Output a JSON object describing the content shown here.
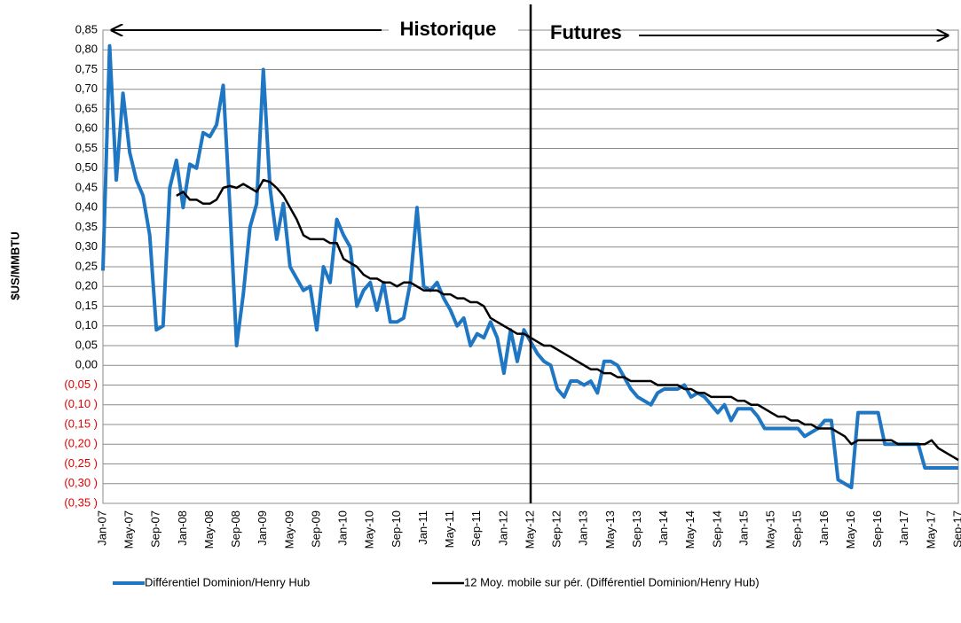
{
  "chart_data": {
    "type": "line",
    "annotations": [
      "Historique",
      "Futures"
    ],
    "ylabel": "$US/MMBTU",
    "categories": [
      "Jan-07",
      null,
      null,
      null,
      "May-07",
      null,
      null,
      null,
      "Sep-07",
      null,
      null,
      null,
      "Jan-08",
      null,
      null,
      null,
      "May-08",
      null,
      null,
      null,
      "Sep-08",
      null,
      null,
      null,
      "Jan-09",
      null,
      null,
      null,
      "May-09",
      null,
      null,
      null,
      "Sep-09",
      null,
      null,
      null,
      "Jan-10",
      null,
      null,
      null,
      "May-10",
      null,
      null,
      null,
      "Sep-10",
      null,
      null,
      null,
      "Jan-11",
      null,
      null,
      null,
      "May-11",
      null,
      null,
      null,
      "Sep-11",
      null,
      null,
      null,
      "Jan-12",
      null,
      null,
      null,
      "May-12",
      null,
      null,
      null,
      "Sep-12",
      null,
      null,
      null,
      "Jan-13",
      null,
      null,
      null,
      "May-13",
      null,
      null,
      null,
      "Sep-13",
      null,
      null,
      null,
      "Jan-14",
      null,
      null,
      null,
      "May-14",
      null,
      null,
      null,
      "Sep-14",
      null,
      null,
      null,
      "Jan-15",
      null,
      null,
      null,
      "May-15",
      null,
      null,
      null,
      "Sep-15",
      null,
      null,
      null,
      "Jan-16",
      null,
      null,
      null,
      "May-16",
      null,
      null,
      null,
      "Sep-16",
      null,
      null,
      null,
      "Jan-17",
      null,
      null,
      null,
      "May-17",
      null,
      null,
      null,
      "Sep-17"
    ],
    "series": [
      {
        "name": "Différentiel Dominion/Henry Hub",
        "color": "#1f77c4",
        "width": 4,
        "values": [
          0.24,
          0.81,
          0.47,
          0.69,
          0.54,
          0.47,
          0.43,
          0.33,
          0.09,
          0.1,
          0.45,
          0.52,
          0.4,
          0.51,
          0.5,
          0.59,
          0.58,
          0.61,
          0.71,
          0.4,
          0.05,
          0.18,
          0.35,
          0.41,
          0.75,
          0.45,
          0.32,
          0.41,
          0.25,
          0.22,
          0.19,
          0.2,
          0.09,
          0.25,
          0.21,
          0.37,
          0.33,
          0.3,
          0.15,
          0.19,
          0.21,
          0.14,
          0.21,
          0.11,
          0.11,
          0.12,
          0.21,
          0.4,
          0.2,
          0.19,
          0.21,
          0.17,
          0.14,
          0.1,
          0.12,
          0.05,
          0.08,
          0.07,
          0.11,
          0.07,
          -0.02,
          0.09,
          0.01,
          0.09,
          0.06,
          0.03,
          0.01,
          0.0,
          -0.06,
          -0.08,
          -0.04,
          -0.04,
          -0.05,
          -0.04,
          -0.07,
          0.01,
          0.01,
          0.0,
          -0.03,
          -0.06,
          -0.08,
          -0.09,
          -0.1,
          -0.07,
          -0.06,
          -0.06,
          -0.06,
          -0.05,
          -0.08,
          -0.07,
          -0.08,
          -0.1,
          -0.12,
          -0.1,
          -0.14,
          -0.11,
          -0.11,
          -0.11,
          -0.13,
          -0.16,
          -0.16,
          -0.16,
          -0.16,
          -0.16,
          -0.16,
          -0.18,
          -0.17,
          -0.16,
          -0.14,
          -0.14,
          -0.29,
          -0.3,
          -0.31,
          -0.12,
          -0.12,
          -0.12,
          -0.12,
          -0.2,
          -0.2,
          -0.2,
          -0.2,
          -0.2,
          -0.2,
          -0.26,
          -0.26,
          -0.26,
          -0.26,
          -0.26,
          -0.26
        ]
      },
      {
        "name": "12 Moy. mobile sur pér. (Différentiel Dominion/Henry Hub)",
        "color": "#000000",
        "width": 2.5,
        "values": [
          null,
          null,
          null,
          null,
          null,
          null,
          null,
          null,
          null,
          null,
          null,
          0.43,
          0.44,
          0.42,
          0.42,
          0.41,
          0.41,
          0.42,
          0.45,
          0.455,
          0.45,
          0.46,
          0.45,
          0.44,
          0.47,
          0.465,
          0.45,
          0.43,
          0.4,
          0.37,
          0.33,
          0.32,
          0.32,
          0.32,
          0.31,
          0.31,
          0.27,
          0.26,
          0.25,
          0.23,
          0.22,
          0.22,
          0.21,
          0.21,
          0.2,
          0.21,
          0.21,
          0.2,
          0.19,
          0.19,
          0.19,
          0.18,
          0.18,
          0.17,
          0.17,
          0.16,
          0.16,
          0.15,
          0.12,
          0.11,
          0.1,
          0.09,
          0.08,
          0.08,
          0.07,
          0.06,
          0.05,
          0.05,
          0.04,
          0.03,
          0.02,
          0.01,
          0.0,
          -0.01,
          -0.01,
          -0.02,
          -0.02,
          -0.03,
          -0.03,
          -0.04,
          -0.04,
          -0.04,
          -0.04,
          -0.05,
          -0.05,
          -0.05,
          -0.05,
          -0.06,
          -0.06,
          -0.07,
          -0.07,
          -0.08,
          -0.08,
          -0.08,
          -0.08,
          -0.09,
          -0.09,
          -0.1,
          -0.1,
          -0.11,
          -0.12,
          -0.13,
          -0.13,
          -0.14,
          -0.14,
          -0.15,
          -0.15,
          -0.16,
          -0.16,
          -0.16,
          -0.17,
          -0.18,
          -0.2,
          -0.19,
          -0.19,
          -0.19,
          -0.19,
          -0.19,
          -0.19,
          -0.2,
          -0.2,
          -0.2,
          -0.2,
          -0.2,
          -0.19,
          -0.21,
          -0.22,
          -0.23,
          -0.24
        ]
      }
    ],
    "ylim": [
      -0.35,
      0.85
    ],
    "yticks": [
      {
        "value": 0.85,
        "label": "0,85"
      },
      {
        "value": 0.8,
        "label": "0,80"
      },
      {
        "value": 0.75,
        "label": "0,75"
      },
      {
        "value": 0.7,
        "label": "0,70"
      },
      {
        "value": 0.65,
        "label": "0,65"
      },
      {
        "value": 0.6,
        "label": "0,60"
      },
      {
        "value": 0.55,
        "label": "0,55"
      },
      {
        "value": 0.5,
        "label": "0,50"
      },
      {
        "value": 0.45,
        "label": "0,45"
      },
      {
        "value": 0.4,
        "label": "0,40"
      },
      {
        "value": 0.35,
        "label": "0,35"
      },
      {
        "value": 0.3,
        "label": "0,30"
      },
      {
        "value": 0.25,
        "label": "0,25"
      },
      {
        "value": 0.2,
        "label": "0,20"
      },
      {
        "value": 0.15,
        "label": "0,15"
      },
      {
        "value": 0.1,
        "label": "0,10"
      },
      {
        "value": 0.05,
        "label": "0,05"
      },
      {
        "value": 0,
        "label": "0,00"
      },
      {
        "value": -0.05,
        "label": "(0,05 )"
      },
      {
        "value": -0.1,
        "label": "(0,10 )"
      },
      {
        "value": -0.15,
        "label": "(0,15 )"
      },
      {
        "value": -0.2,
        "label": "(0,20 )"
      },
      {
        "value": -0.25,
        "label": "(0,25 )"
      },
      {
        "value": -0.3,
        "label": "(0,30 )"
      },
      {
        "value": -0.35,
        "label": "(0,35 )"
      }
    ],
    "grid": true
  }
}
